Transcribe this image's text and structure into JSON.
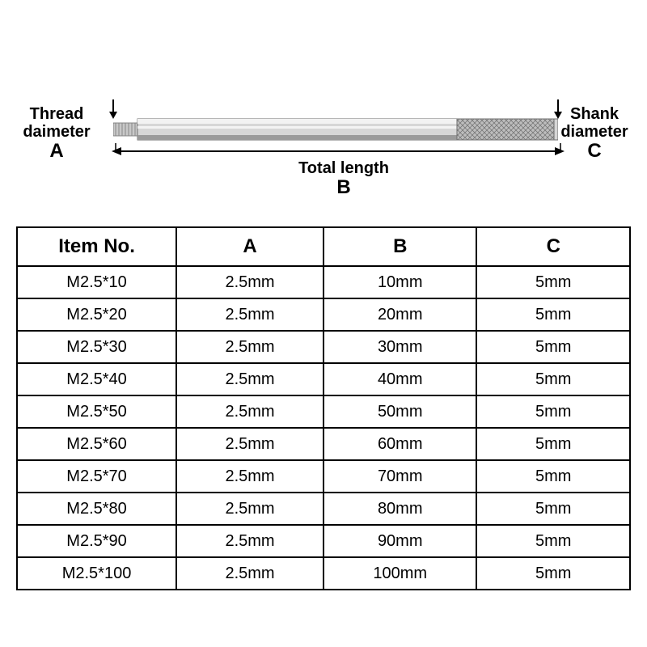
{
  "diagram": {
    "thread_label_line1": "Thread",
    "thread_label_line2": "daimeter",
    "thread_letter": "A",
    "total_label": "Total length",
    "total_letter": "B",
    "shank_label_line1": "Shank",
    "shank_label_line2": "diameter",
    "shank_letter": "C",
    "rod_body_fill": "#d6d6d6",
    "rod_highlight": "#f2f2f2",
    "rod_shadow": "#9a9a9a",
    "knurl_fill": "#bdbdbd",
    "thread_fill": "#c8c8c8",
    "outline": "#6e6e6e"
  },
  "table": {
    "header": [
      "Item No.",
      "A",
      "B",
      "C"
    ],
    "rows": [
      [
        "M2.5*10",
        "2.5mm",
        "10mm",
        "5mm"
      ],
      [
        "M2.5*20",
        "2.5mm",
        "20mm",
        "5mm"
      ],
      [
        "M2.5*30",
        "2.5mm",
        "30mm",
        "5mm"
      ],
      [
        "M2.5*40",
        "2.5mm",
        "40mm",
        "5mm"
      ],
      [
        "M2.5*50",
        "2.5mm",
        "50mm",
        "5mm"
      ],
      [
        "M2.5*60",
        "2.5mm",
        "60mm",
        "5mm"
      ],
      [
        "M2.5*70",
        "2.5mm",
        "70mm",
        "5mm"
      ],
      [
        "M2.5*80",
        "2.5mm",
        "80mm",
        "5mm"
      ],
      [
        "M2.5*90",
        "2.5mm",
        "90mm",
        "5mm"
      ],
      [
        "M2.5*100",
        "2.5mm",
        "100mm",
        "5mm"
      ]
    ],
    "border_color": "#000000",
    "cell_bg": "#ffffff",
    "font_color": "#000000"
  }
}
